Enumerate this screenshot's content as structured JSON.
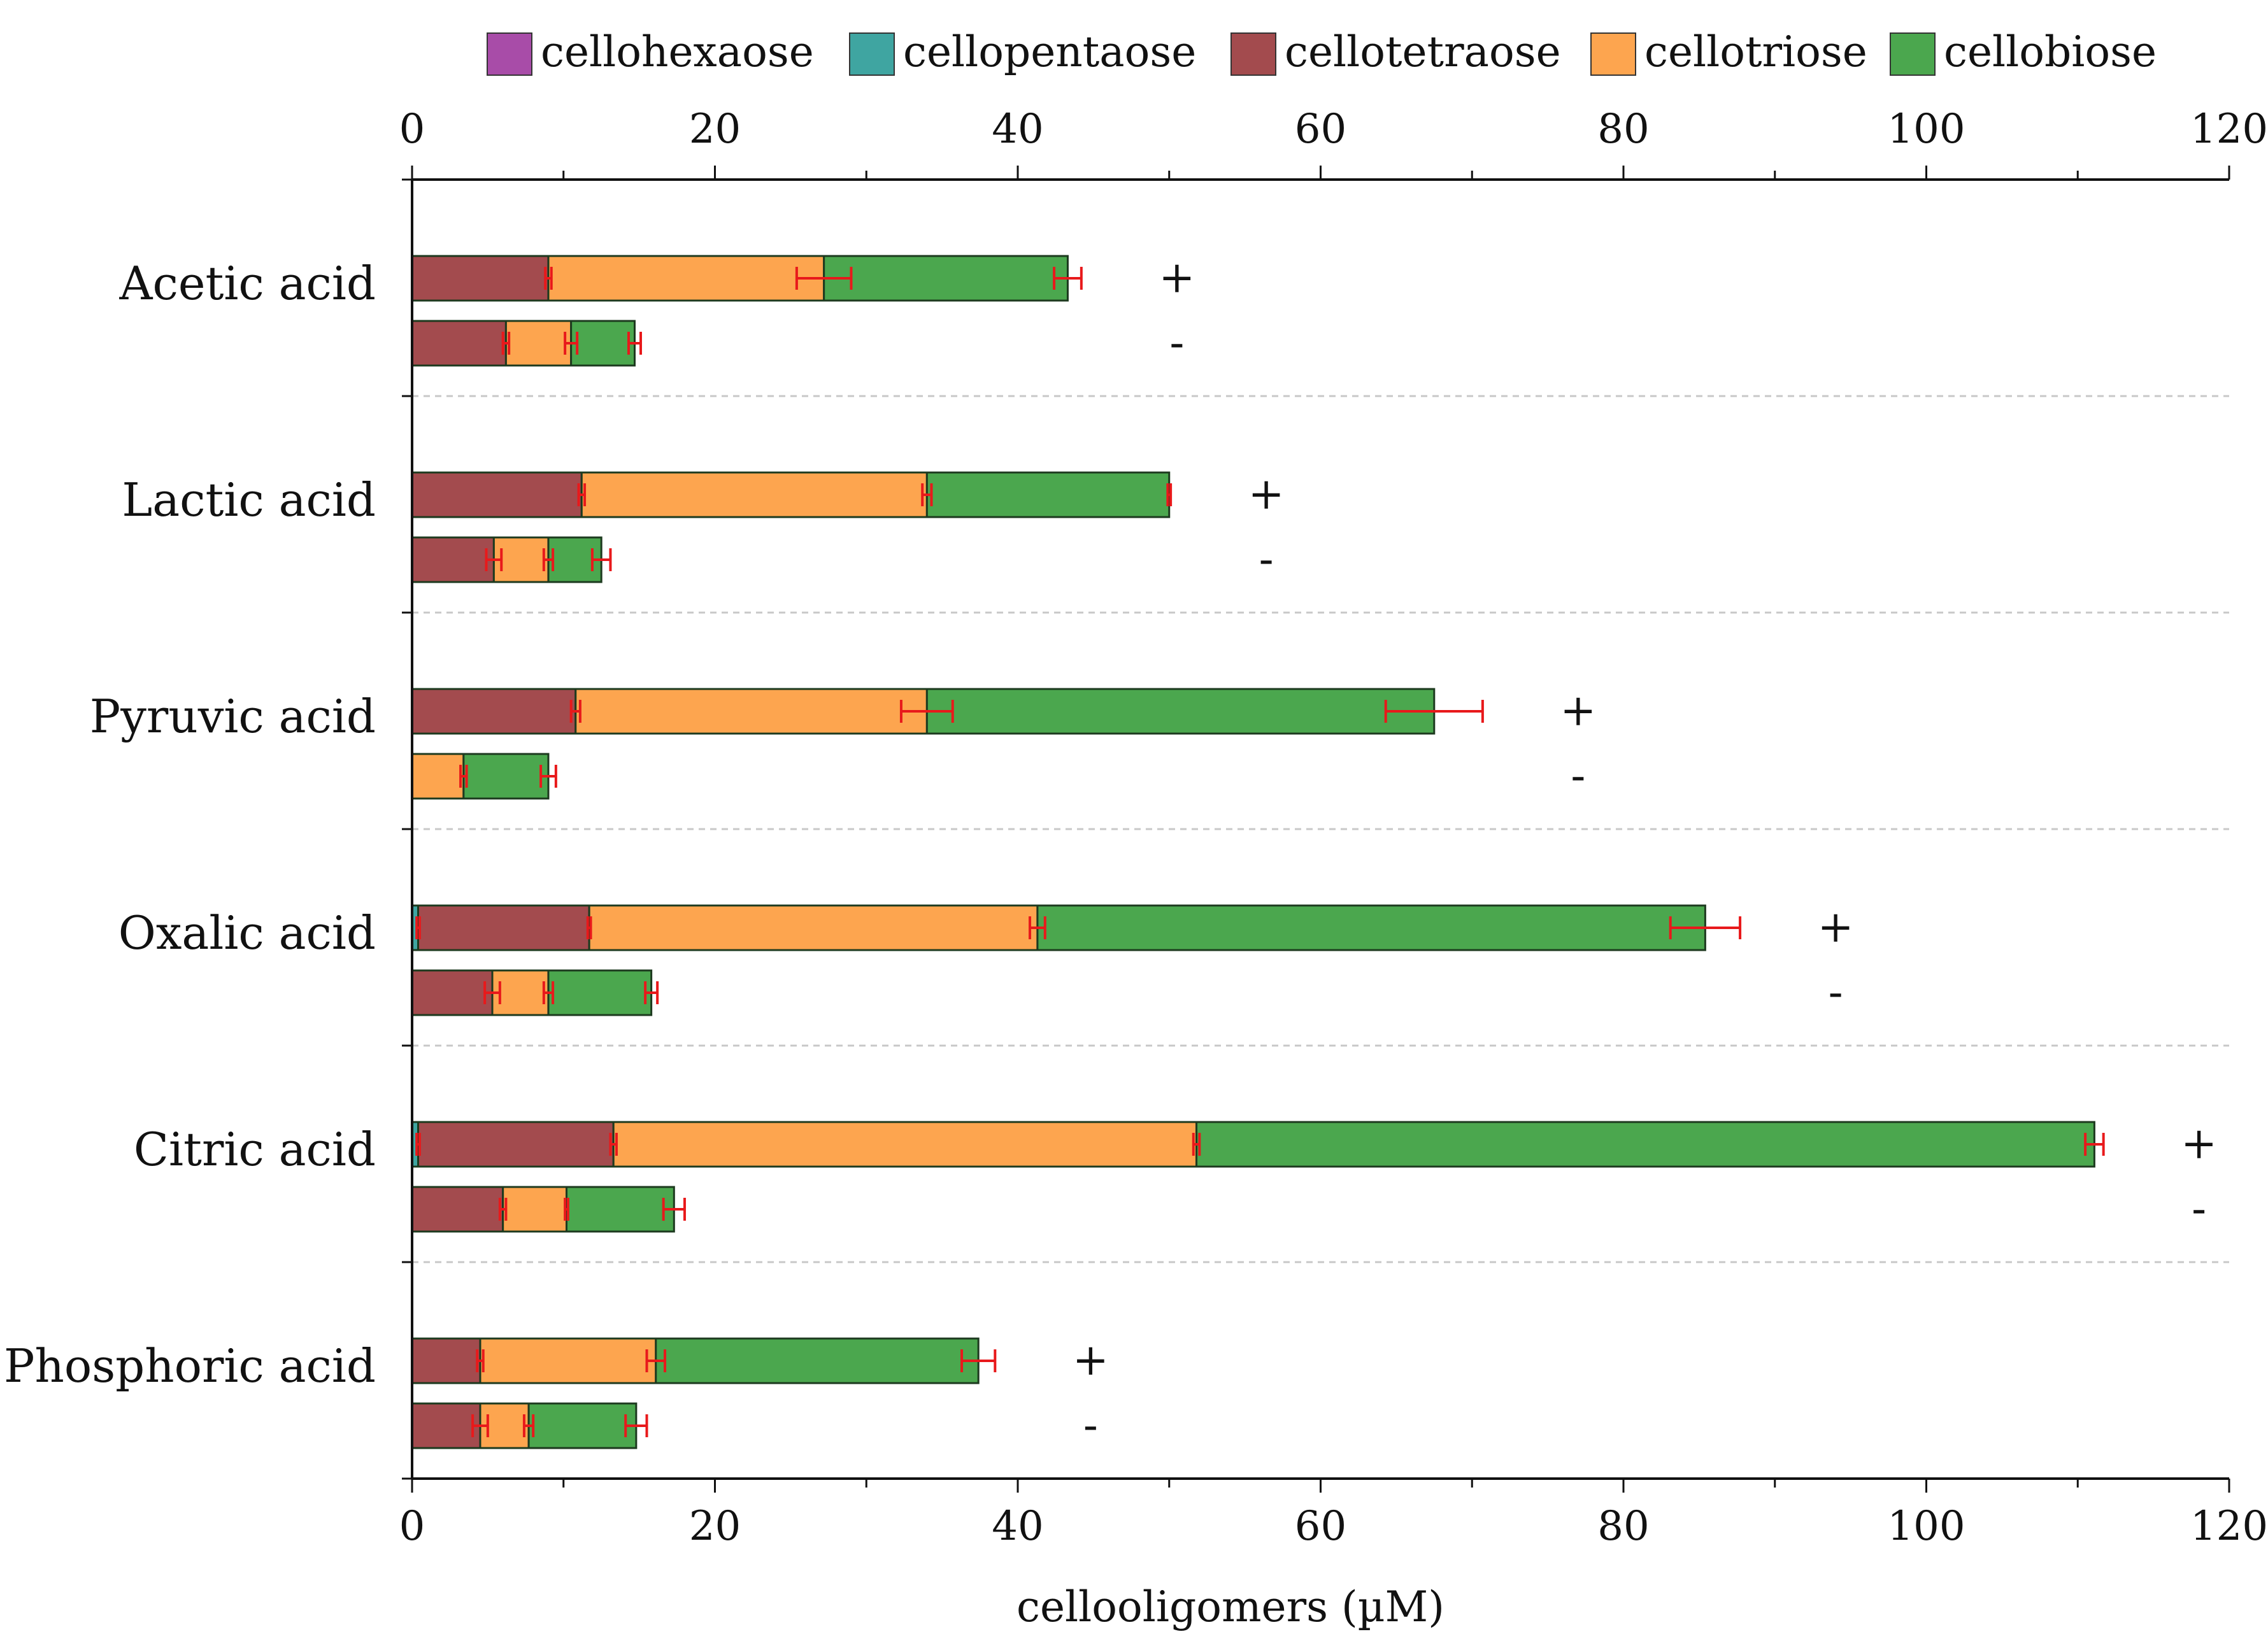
{
  "chart_data": {
    "type": "bar",
    "orientation": "horizontal",
    "stacked": true,
    "xlabel": "cellooligomers (µM)",
    "xlim": [
      0,
      120
    ],
    "xticks": [
      0,
      20,
      40,
      60,
      80,
      100,
      120
    ],
    "xtick_labels": [
      "0",
      "20",
      "40",
      "60",
      "80",
      "100",
      "120"
    ],
    "legend": {
      "placement": "top-center",
      "entries": [
        {
          "name": "cellohexaose",
          "color": "#a84ca8"
        },
        {
          "name": "cellopentaose",
          "color": "#3fa5a1"
        },
        {
          "name": "cellotetraose",
          "color": "#a34b4e"
        },
        {
          "name": "cellotriose",
          "color": "#fda54f"
        },
        {
          "name": "cellobiose",
          "color": "#4ba74e"
        }
      ]
    },
    "stack_order": [
      "cellohexaose",
      "cellopentaose",
      "cellotetraose",
      "cellotriose",
      "cellobiose"
    ],
    "series_colors": {
      "cellohexaose": "#a84ca8",
      "cellopentaose": "#3fa5a1",
      "cellotetraose": "#a34b4e",
      "cellotriose": "#fda54f",
      "cellobiose": "#4ba74e"
    },
    "error_bar_color": "#e8191b",
    "categories": [
      "Acetic acid",
      "Lactic acid",
      "Pyruvic acid",
      "Oxalic acid",
      "Citric acid",
      "Phosphoric acid"
    ],
    "groups": [
      {
        "category": "Acetic acid",
        "bars": [
          {
            "sign": "+",
            "values": {
              "cellohexaose": 0,
              "cellopentaose": 0,
              "cellotetraose": 9,
              "cellotriose": 18.2,
              "cellobiose": 16.1
            },
            "errors": {
              "cellotetraose": 0.2,
              "cellotriose": 1.8,
              "cellobiose": 0.9
            }
          },
          {
            "sign": "-",
            "values": {
              "cellohexaose": 0,
              "cellopentaose": 0,
              "cellotetraose": 6.2,
              "cellotriose": 4.3,
              "cellobiose": 4.2
            },
            "errors": {
              "cellotetraose": 0.2,
              "cellotriose": 0.4,
              "cellobiose": 0.4
            }
          }
        ]
      },
      {
        "category": "Lactic acid",
        "bars": [
          {
            "sign": "+",
            "values": {
              "cellohexaose": 0,
              "cellopentaose": 0,
              "cellotetraose": 11.2,
              "cellotriose": 22.8,
              "cellobiose": 16.0
            },
            "errors": {
              "cellotetraose": 0.2,
              "cellotriose": 0.3,
              "cellobiose": 0.1
            }
          },
          {
            "sign": "-",
            "values": {
              "cellohexaose": 0,
              "cellopentaose": 0,
              "cellotetraose": 5.4,
              "cellotriose": 3.6,
              "cellobiose": 3.5
            },
            "errors": {
              "cellotetraose": 0.5,
              "cellotriose": 0.3,
              "cellobiose": 0.6
            }
          }
        ]
      },
      {
        "category": "Pyruvic acid",
        "bars": [
          {
            "sign": "+",
            "values": {
              "cellohexaose": 0,
              "cellopentaose": 0,
              "cellotetraose": 10.8,
              "cellotriose": 23.2,
              "cellobiose": 33.5
            },
            "errors": {
              "cellotetraose": 0.3,
              "cellotriose": 1.7,
              "cellobiose": 3.2
            }
          },
          {
            "sign": "-",
            "values": {
              "cellohexaose": 0,
              "cellopentaose": 0,
              "cellotetraose": 0,
              "cellotriose": 3.4,
              "cellobiose": 5.6
            },
            "errors": {
              "cellotriose": 0.2,
              "cellobiose": 0.5
            }
          }
        ]
      },
      {
        "category": "Oxalic acid",
        "bars": [
          {
            "sign": "+",
            "values": {
              "cellohexaose": 0,
              "cellopentaose": 0.4,
              "cellotetraose": 11.3,
              "cellotriose": 29.6,
              "cellobiose": 44.1
            },
            "errors": {
              "cellopentaose": 0.1,
              "cellotetraose": 0.1,
              "cellotriose": 0.5,
              "cellobiose": 2.3
            }
          },
          {
            "sign": "-",
            "values": {
              "cellohexaose": 0,
              "cellopentaose": 0,
              "cellotetraose": 5.3,
              "cellotriose": 3.7,
              "cellobiose": 6.8
            },
            "errors": {
              "cellotetraose": 0.5,
              "cellotriose": 0.3,
              "cellobiose": 0.4
            }
          }
        ]
      },
      {
        "category": "Citric acid",
        "bars": [
          {
            "sign": "+",
            "values": {
              "cellohexaose": 0,
              "cellopentaose": 0.4,
              "cellotetraose": 12.9,
              "cellotriose": 38.5,
              "cellobiose": 59.3
            },
            "errors": {
              "cellopentaose": 0.1,
              "cellotetraose": 0.2,
              "cellotriose": 0.2,
              "cellobiose": 0.6
            }
          },
          {
            "sign": "-",
            "values": {
              "cellohexaose": 0,
              "cellopentaose": 0,
              "cellotetraose": 6.0,
              "cellotriose": 4.2,
              "cellobiose": 7.1
            },
            "errors": {
              "cellotetraose": 0.2,
              "cellotriose": 0.1,
              "cellobiose": 0.7
            }
          }
        ]
      },
      {
        "category": "Phosphoric acid",
        "bars": [
          {
            "sign": "+",
            "values": {
              "cellohexaose": 0,
              "cellopentaose": 0,
              "cellotetraose": 4.5,
              "cellotriose": 11.6,
              "cellobiose": 21.3
            },
            "errors": {
              "cellotetraose": 0.2,
              "cellotriose": 0.6,
              "cellobiose": 1.1
            }
          },
          {
            "sign": "-",
            "values": {
              "cellohexaose": 0,
              "cellopentaose": 0,
              "cellotetraose": 4.5,
              "cellotriose": 3.2,
              "cellobiose": 7.1
            },
            "errors": {
              "cellotetraose": 0.5,
              "cellotriose": 0.3,
              "cellobiose": 0.7
            }
          }
        ]
      }
    ]
  }
}
